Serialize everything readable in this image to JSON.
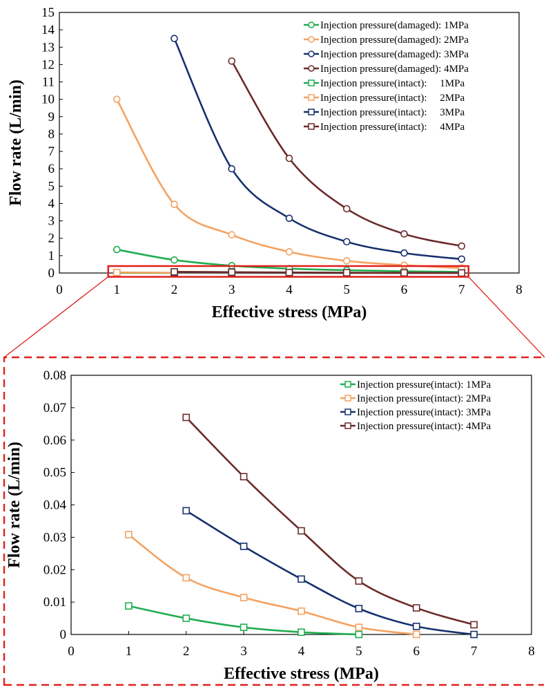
{
  "colors": {
    "green": "#1fad4f",
    "orange": "#f4a261",
    "navy": "#17306e",
    "maroon": "#6b2a2a",
    "zoom_box": "#e0201b"
  },
  "chart_data": [
    {
      "type": "line",
      "marker_note": "",
      "title": "",
      "xlabel": "Effective stress (MPa)",
      "ylabel": "Flow rate (L/min)",
      "xlim": [
        0,
        8
      ],
      "ylim": [
        0,
        15
      ],
      "x_ticks": [
        "0",
        "1",
        "2",
        "3",
        "4",
        "5",
        "6",
        "7",
        "8"
      ],
      "y_ticks": [
        "0",
        "1",
        "2",
        "3",
        "4",
        "5",
        "6",
        "7",
        "8",
        "9",
        "10",
        "11",
        "12",
        "13",
        "14",
        "15"
      ],
      "legend_position": "top-right",
      "series": [
        {
          "name": "Injection pressure(damaged): 1MPa",
          "color": "#1fad4f",
          "marker": "circle",
          "x": [
            1,
            2,
            3,
            4,
            5,
            6,
            7
          ],
          "y": [
            1.35,
            0.75,
            0.42,
            0.25,
            0.16,
            0.1,
            0.06
          ]
        },
        {
          "name": "Injection pressure(damaged): 2MPa",
          "color": "#f4a261",
          "marker": "circle",
          "x": [
            1,
            2,
            3,
            4,
            5,
            6,
            7
          ],
          "y": [
            10.0,
            3.95,
            2.2,
            1.22,
            0.7,
            0.45,
            0.28
          ]
        },
        {
          "name": "Injection pressure(damaged): 3MPa",
          "color": "#17306e",
          "marker": "circle",
          "x": [
            2,
            3,
            4,
            5,
            6,
            7
          ],
          "y": [
            13.5,
            6.0,
            3.15,
            1.8,
            1.15,
            0.8
          ]
        },
        {
          "name": "Injection pressure(damaged): 4MPa",
          "color": "#6b2a2a",
          "marker": "circle",
          "x": [
            3,
            4,
            5,
            6,
            7
          ],
          "y": [
            12.2,
            6.6,
            3.7,
            2.25,
            1.55
          ]
        },
        {
          "name": "Injection pressure(intact):     1MPa",
          "color": "#1fad4f",
          "marker": "square",
          "x": [
            1,
            2,
            3,
            4,
            5
          ],
          "y": [
            0.0088,
            0.005,
            0.0022,
            0.0007,
            0.0
          ]
        },
        {
          "name": "Injection pressure(intact):     2MPa",
          "color": "#f4a261",
          "marker": "square",
          "x": [
            1,
            2,
            3,
            4,
            5,
            6
          ],
          "y": [
            0.0308,
            0.0175,
            0.0114,
            0.0072,
            0.0022,
            0.0
          ]
        },
        {
          "name": "Injection pressure(intact):     3MPa",
          "color": "#17306e",
          "marker": "square",
          "x": [
            2,
            3,
            4,
            5,
            6,
            7
          ],
          "y": [
            0.0382,
            0.0272,
            0.0171,
            0.008,
            0.0025,
            0.0
          ]
        },
        {
          "name": "Injection pressure(intact):     4MPa",
          "color": "#6b2a2a",
          "marker": "square",
          "x": [
            2,
            3,
            4,
            5,
            6,
            7
          ],
          "y": [
            0.067,
            0.0487,
            0.032,
            0.0165,
            0.0082,
            0.003
          ]
        }
      ]
    },
    {
      "type": "line",
      "title": "",
      "xlabel": "Effective stress (MPa)",
      "ylabel": "Flow rate (L/min)",
      "xlim": [
        0,
        8
      ],
      "ylim": [
        0,
        0.08
      ],
      "x_ticks": [
        "0",
        "1",
        "2",
        "3",
        "4",
        "5",
        "6",
        "7",
        "8"
      ],
      "y_ticks": [
        "0",
        "0.01",
        "0.02",
        "0.03",
        "0.04",
        "0.05",
        "0.06",
        "0.07",
        "0.08"
      ],
      "legend_position": "top-right",
      "series": [
        {
          "name": "Injection pressure(intact): 1MPa",
          "color": "#1fad4f",
          "marker": "square",
          "x": [
            1,
            2,
            3,
            4,
            5
          ],
          "y": [
            0.0088,
            0.005,
            0.0022,
            0.0007,
            0.0
          ]
        },
        {
          "name": "Injection pressure(intact): 2MPa",
          "color": "#f4a261",
          "marker": "square",
          "x": [
            1,
            2,
            3,
            4,
            5,
            6
          ],
          "y": [
            0.0308,
            0.0175,
            0.0114,
            0.0072,
            0.0022,
            0.0
          ]
        },
        {
          "name": "Injection pressure(intact): 3MPa",
          "color": "#17306e",
          "marker": "square",
          "x": [
            2,
            3,
            4,
            5,
            6,
            7
          ],
          "y": [
            0.0382,
            0.0272,
            0.0171,
            0.008,
            0.0025,
            0.0
          ]
        },
        {
          "name": "Injection pressure(intact): 4MPa",
          "color": "#6b2a2a",
          "marker": "square",
          "x": [
            2,
            3,
            4,
            5,
            6,
            7
          ],
          "y": [
            0.067,
            0.0487,
            0.032,
            0.0165,
            0.0082,
            0.003
          ]
        }
      ]
    }
  ]
}
